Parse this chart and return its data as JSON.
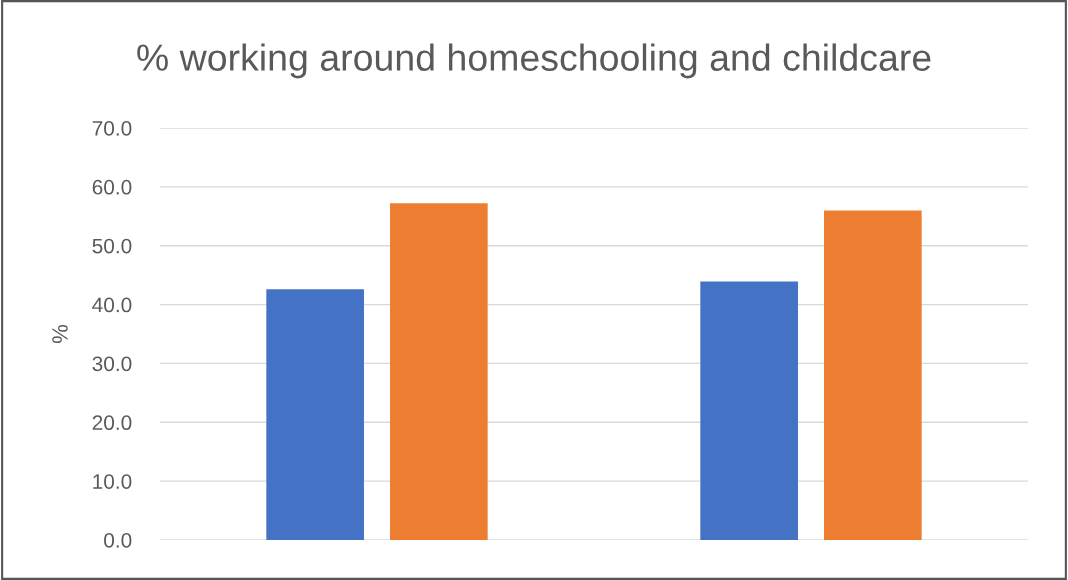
{
  "chart_data": {
    "type": "bar",
    "title": "% working around homeschooling and childcare",
    "ylabel": "%",
    "categories": [
      null,
      null
    ],
    "series": [
      {
        "color": "#4472c4",
        "values": [
          42.6,
          43.9
        ]
      },
      {
        "color": "#ed7d31",
        "values": [
          57.2,
          56.0
        ]
      }
    ],
    "ylim": [
      0,
      70
    ],
    "yticks": [
      {
        "value": 0,
        "label": "0.0"
      },
      {
        "value": 10,
        "label": "10.0"
      },
      {
        "value": 20,
        "label": "20.0"
      },
      {
        "value": 30,
        "label": "30.0"
      },
      {
        "value": 40,
        "label": "40.0"
      },
      {
        "value": 50,
        "label": "50.0"
      },
      {
        "value": 60,
        "label": "60.0"
      },
      {
        "value": 70,
        "label": "70.0"
      }
    ],
    "grid": "y",
    "legend": false
  }
}
